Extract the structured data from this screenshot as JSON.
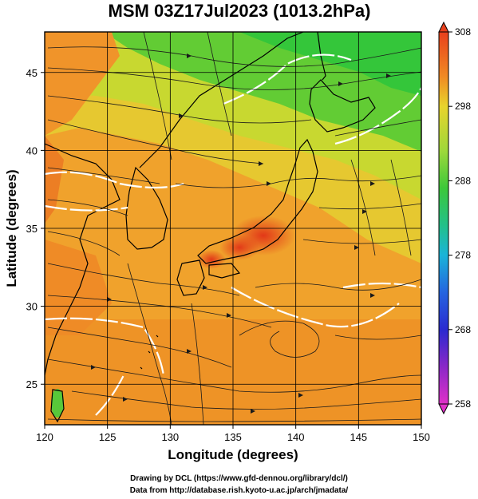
{
  "title": "MSM 03Z17Jul2023 (1013.2hPa)",
  "x_axis_title": "Longitude (degrees)",
  "y_axis_title": "Latitude  (degrees)",
  "x_ticks": [
    120,
    125,
    130,
    135,
    140,
    145,
    150
  ],
  "y_ticks": [
    25,
    30,
    35,
    40,
    45
  ],
  "lon_range": [
    120,
    150
  ],
  "lat_range": [
    22.4,
    47.6
  ],
  "colorbar": {
    "ticks": [
      308,
      298,
      288,
      278,
      268,
      258
    ],
    "min": 258,
    "max": 308
  },
  "credits": {
    "line1": "Drawing by DCL (https://www.gfd-dennou.org/library/dcl/)",
    "line2": "Data from http://database.rish.kyoto-u.ac.jp/arch/jmadata/"
  },
  "colors": {
    "hot": "#e8401c",
    "warm": "#f5a626",
    "mild": "#d8e22e",
    "cool": "#3cc83a",
    "land_outline": "#000000",
    "contour": "#ffffff"
  }
}
